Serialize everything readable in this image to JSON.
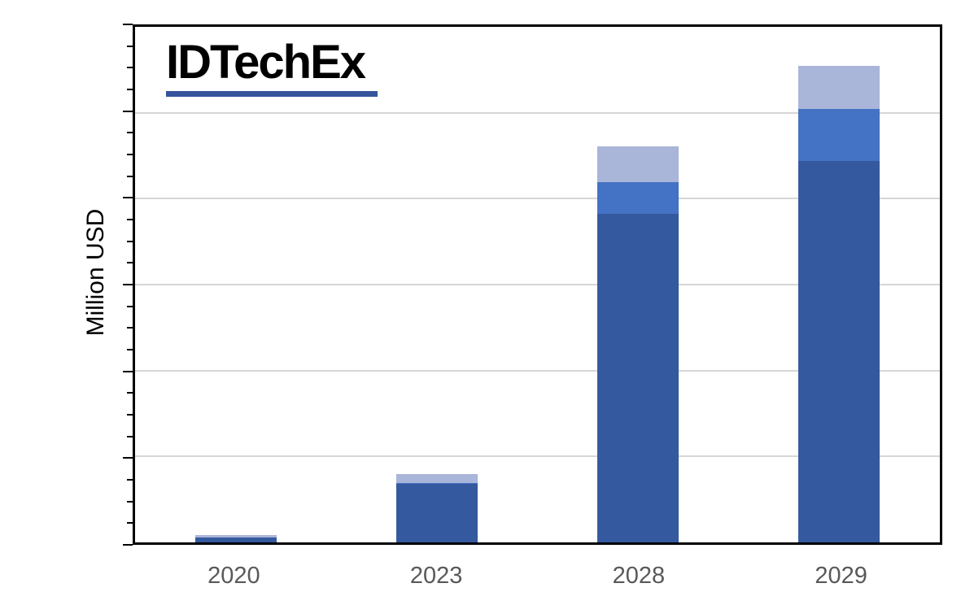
{
  "logo": {
    "text": "IDTechEx",
    "underline_color": "#35549B"
  },
  "axis": {
    "line_color": "#000000",
    "gridline_color": "#D6D6D6",
    "x_label_color": "#595959",
    "y_label_color": "#000000"
  },
  "chart_data": {
    "type": "bar",
    "stacked": true,
    "title": "",
    "xlabel": "",
    "ylabel": "Million USD",
    "categories": [
      "2020",
      "2023",
      "2028",
      "2029"
    ],
    "series": [
      {
        "name": "dark-blue-bottom-segment",
        "color": "#35599E",
        "values": [
          0.06,
          0.68,
          3.82,
          4.44
        ]
      },
      {
        "name": "medium-blue-middle-segment",
        "color": "#4472C4",
        "values": [
          0.0,
          0.01,
          0.37,
          0.61
        ]
      },
      {
        "name": "light-blue-top-segment",
        "color": "#A9B5D9",
        "values": [
          0.03,
          0.1,
          0.42,
          0.5
        ]
      }
    ],
    "ylim": [
      0,
      6
    ],
    "y_axis_units": "gridline divisions (numeric tick labels not shown in chart)",
    "y_ticks": {
      "major_divisions": 6,
      "minor_per_major": 4,
      "labels_visible": false
    },
    "grid": "horizontal",
    "legend": "none"
  }
}
